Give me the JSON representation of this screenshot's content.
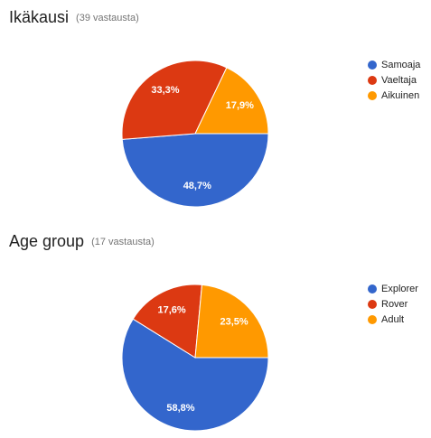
{
  "chart_data": [
    {
      "type": "pie",
      "title": "Ikäkausi",
      "subtitle": "(39 vastausta)",
      "categories": [
        "Samoaja",
        "Vaeltaja",
        "Aikuinen"
      ],
      "values": [
        48.7,
        33.3,
        17.9
      ],
      "value_labels": [
        "48,7%",
        "33,3%",
        "17,9%"
      ],
      "colors": [
        "#3366cc",
        "#dc3912",
        "#ff9900"
      ],
      "legend": "right"
    },
    {
      "type": "pie",
      "title": "Age group",
      "subtitle": "(17 vastausta)",
      "categories": [
        "Explorer",
        "Rover",
        "Adult"
      ],
      "values": [
        58.8,
        17.6,
        23.5
      ],
      "value_labels": [
        "58,8%",
        "17,6%",
        "23,5%"
      ],
      "colors": [
        "#3366cc",
        "#dc3912",
        "#ff9900"
      ],
      "legend": "right"
    }
  ]
}
